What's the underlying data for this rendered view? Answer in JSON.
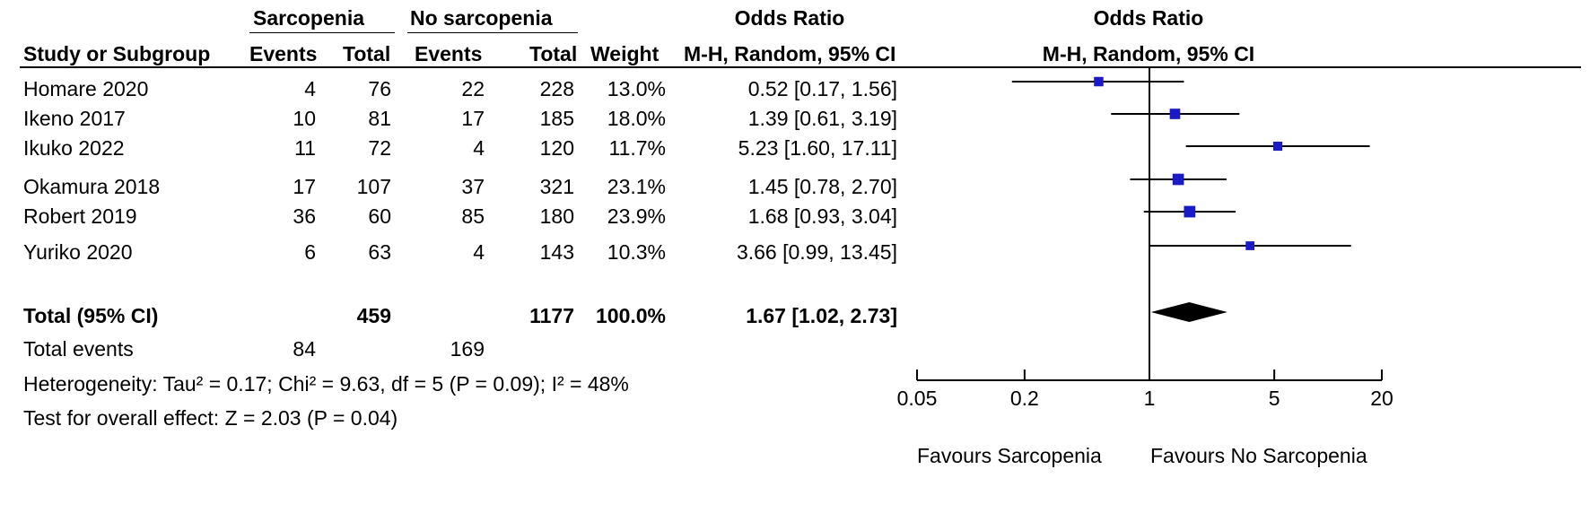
{
  "header": {
    "group1": "Sarcopenia",
    "group2": "No sarcopenia",
    "or_label": "Odds Ratio",
    "or_plot_label": "Odds Ratio",
    "col_study": "Study or Subgroup",
    "col_events1": "Events",
    "col_total1": "Total",
    "col_events2": "Events",
    "col_total2": "Total",
    "col_weight": "Weight",
    "col_method": "M-H, Random, 95% CI",
    "col_method_plot": "M-H, Random, 95% CI"
  },
  "studies": [
    {
      "name": "Homare 2020",
      "events1": "4",
      "total1": "76",
      "events2": "22",
      "total2": "228",
      "weight": "13.0%",
      "ci_text": "0.52 [0.17, 1.56]"
    },
    {
      "name": "Ikeno 2017",
      "events1": "10",
      "total1": "81",
      "events2": "17",
      "total2": "185",
      "weight": "18.0%",
      "ci_text": "1.39 [0.61, 3.19]"
    },
    {
      "name": "Ikuko 2022",
      "events1": "11",
      "total1": "72",
      "events2": "4",
      "total2": "120",
      "weight": "11.7%",
      "ci_text": "5.23 [1.60, 17.11]"
    },
    {
      "name": "Okamura 2018",
      "events1": "17",
      "total1": "107",
      "events2": "37",
      "total2": "321",
      "weight": "23.1%",
      "ci_text": "1.45 [0.78, 2.70]"
    },
    {
      "name": "Robert 2019",
      "events1": "36",
      "total1": "60",
      "events2": "85",
      "total2": "180",
      "weight": "23.9%",
      "ci_text": "1.68 [0.93, 3.04]"
    },
    {
      "name": "Yuriko 2020",
      "events1": "6",
      "total1": "63",
      "events2": "4",
      "total2": "143",
      "weight": "10.3%",
      "ci_text": "3.66 [0.99, 13.45]"
    }
  ],
  "total_row": {
    "label": "Total (95% CI)",
    "total1": "459",
    "total2": "1177",
    "weight": "100.0%",
    "ci_text": "1.67 [1.02, 2.73]"
  },
  "total_events": {
    "label": "Total events",
    "events1": "84",
    "events2": "169"
  },
  "heterogeneity": "Heterogeneity: Tau² = 0.17; Chi² = 9.63, df = 5 (P = 0.09); I² = 48%",
  "overall_effect": "Test for overall effect: Z = 2.03 (P = 0.04)",
  "axis": {
    "ticks": [
      0.05,
      0.2,
      1,
      5,
      20
    ],
    "tick_labels": [
      "0.05",
      "0.2",
      "1",
      "5",
      "20"
    ],
    "favours_left": "Favours Sarcopenia",
    "favours_right": "Favours No Sarcopenia"
  },
  "colors": {
    "marker": "#1a1ac8",
    "diamond": "#000000",
    "line": "#000000"
  },
  "chart_data": {
    "type": "forest",
    "scale": "log",
    "xlim": [
      0.05,
      20
    ],
    "reference_line": 1,
    "series": [
      {
        "name": "Homare 2020",
        "or": 0.52,
        "lower": 0.17,
        "upper": 1.56,
        "weight": 13.0
      },
      {
        "name": "Ikeno 2017",
        "or": 1.39,
        "lower": 0.61,
        "upper": 3.19,
        "weight": 18.0
      },
      {
        "name": "Ikuko 2022",
        "or": 5.23,
        "lower": 1.6,
        "upper": 17.11,
        "weight": 11.7
      },
      {
        "name": "Okamura 2018",
        "or": 1.45,
        "lower": 0.78,
        "upper": 2.7,
        "weight": 23.1
      },
      {
        "name": "Robert 2019",
        "or": 1.68,
        "lower": 0.93,
        "upper": 3.04,
        "weight": 23.9
      },
      {
        "name": "Yuriko 2020",
        "or": 3.66,
        "lower": 0.99,
        "upper": 13.45,
        "weight": 10.3
      }
    ],
    "pooled": {
      "name": "Total (95% CI)",
      "or": 1.67,
      "lower": 1.02,
      "upper": 2.73
    }
  }
}
